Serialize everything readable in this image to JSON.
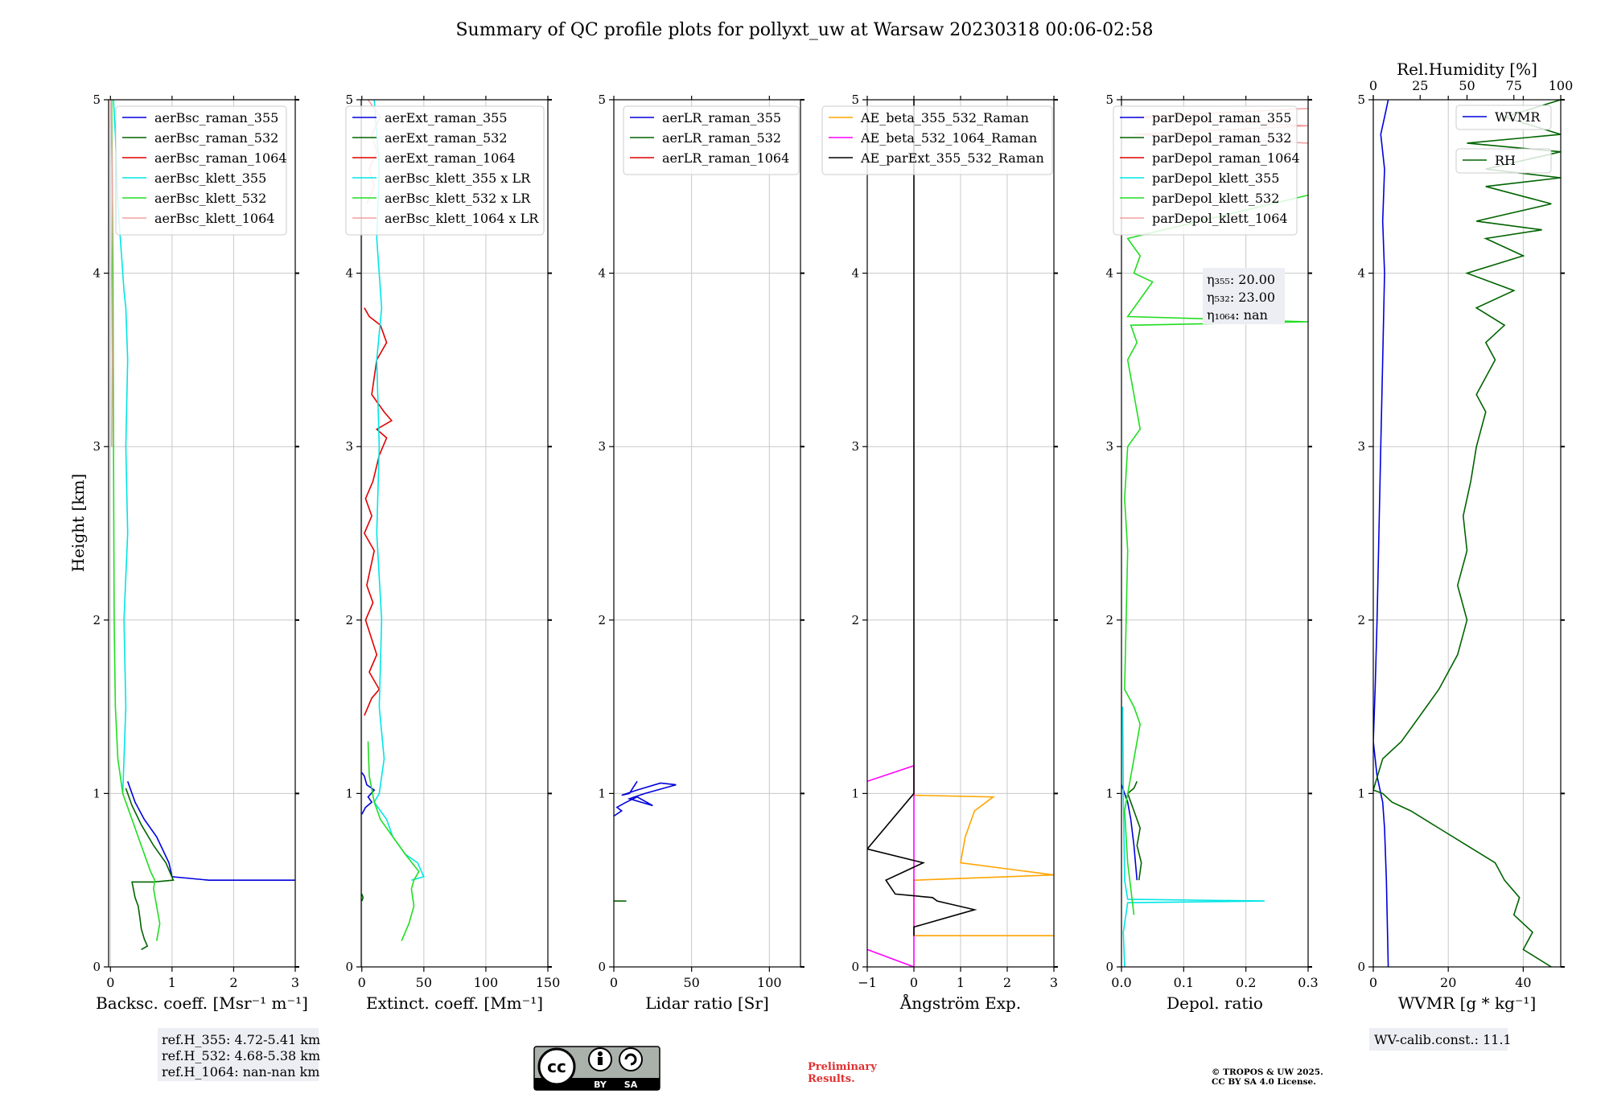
{
  "title": "Summary of QC profile plots for pollyxt_uw at Warsaw 20230318 00:06-02:58",
  "y_label": "Height [km]",
  "y_ticks": [
    "0",
    "1",
    "2",
    "3",
    "4",
    "5"
  ],
  "colors": {
    "blue": "#0000dd",
    "green": "#006400",
    "red": "#e00000",
    "cyan": "#00e5e5",
    "lime": "#22dd22",
    "pink": "#f4a0a0",
    "orange": "#ffa500",
    "magenta": "#ff00ff",
    "black": "#000000",
    "grid": "#c8c8c8",
    "box": "#eceef3"
  },
  "chart_data": [
    {
      "type": "line",
      "xlabel": "Backsc. coeff. [Msr⁻¹ m⁻¹]",
      "xlim": [
        -0.03,
        3
      ],
      "ylim": [
        0,
        5
      ],
      "xticks": [
        0,
        1,
        2,
        3
      ],
      "xtick_labels": [
        "0",
        "1",
        "2",
        "3"
      ],
      "legend": "top-right",
      "series": [
        {
          "name": "aerBsc_raman_355",
          "color": "blue",
          "x": [
            0.28,
            0.4,
            0.55,
            0.75,
            0.95,
            1.0,
            1.6,
            3.0
          ],
          "y": [
            1.07,
            0.95,
            0.85,
            0.75,
            0.6,
            0.52,
            0.5,
            0.5
          ]
        },
        {
          "name": "aerBsc_raman_532",
          "color": "green",
          "x": [
            0.25,
            0.35,
            0.5,
            0.7,
            0.9,
            1.02,
            0.7,
            0.35,
            0.4,
            0.45,
            0.48,
            0.5,
            0.55,
            0.6,
            0.5
          ],
          "y": [
            1.03,
            0.93,
            0.82,
            0.7,
            0.6,
            0.5,
            0.49,
            0.49,
            0.4,
            0.35,
            0.28,
            0.22,
            0.16,
            0.12,
            0.1
          ]
        },
        {
          "name": "aerBsc_raman_1064",
          "color": "red",
          "x": [],
          "y": []
        },
        {
          "name": "aerBsc_klett_355",
          "color": "cyan",
          "x": [
            0.2,
            0.25,
            0.22,
            0.28,
            0.25,
            0.28,
            0.25,
            0.22,
            0.2,
            0.18,
            0.15,
            0.12,
            0.1,
            0.08,
            0.05
          ],
          "y": [
            1.0,
            1.5,
            2.0,
            2.5,
            3.0,
            3.5,
            3.8,
            3.9,
            4.0,
            4.1,
            4.25,
            4.4,
            4.6,
            4.8,
            5.0
          ]
        },
        {
          "name": "aerBsc_klett_532",
          "color": "lime",
          "x": [
            0.75,
            0.8,
            0.75,
            0.7,
            0.72,
            0.65,
            0.5,
            0.35,
            0.2,
            0.12,
            0.08,
            0.06,
            0.05,
            0.04,
            0.03,
            0.02
          ],
          "y": [
            0.15,
            0.25,
            0.35,
            0.45,
            0.5,
            0.55,
            0.7,
            0.85,
            1.0,
            1.2,
            1.5,
            2.0,
            3.0,
            4.0,
            4.5,
            5.0
          ]
        },
        {
          "name": "aerBsc_klett_1064",
          "color": "pink",
          "x": [
            0.02,
            0.03,
            0.02,
            0.03,
            0.01
          ],
          "y": [
            3.0,
            3.5,
            4.0,
            4.5,
            5.0
          ]
        }
      ],
      "note_lines": [
        "ref.H_355: 4.72-5.41 km",
        "ref.H_532: 4.68-5.38 km",
        "ref.H_1064: nan-nan km"
      ]
    },
    {
      "type": "line",
      "xlabel": "Extinct. coeff. [Mm⁻¹]",
      "xlim": [
        -0.5,
        150
      ],
      "ylim": [
        0,
        5
      ],
      "xticks": [
        0,
        50,
        100,
        150
      ],
      "xtick_labels": [
        "0",
        "50",
        "100",
        "150"
      ],
      "legend": "top-right",
      "series": [
        {
          "name": "aerExt_raman_355",
          "color": "blue",
          "x": [
            0,
            3,
            8,
            5,
            10,
            4,
            2,
            0
          ],
          "y": [
            0.88,
            0.92,
            0.95,
            0.98,
            1.02,
            1.05,
            1.1,
            1.12
          ]
        },
        {
          "name": "aerExt_raman_532",
          "color": "green",
          "x": [
            0,
            1,
            0
          ],
          "y": [
            0.38,
            0.4,
            0.42
          ]
        },
        {
          "name": "aerExt_raman_1064",
          "color": "red",
          "x": [
            2,
            8,
            14,
            6,
            12,
            3,
            9,
            4,
            10,
            2,
            8,
            3,
            9,
            14,
            20,
            12,
            24,
            18,
            8,
            12,
            20,
            15,
            6,
            2
          ],
          "y": [
            1.45,
            1.55,
            1.6,
            1.7,
            1.8,
            2.0,
            2.1,
            2.2,
            2.4,
            2.5,
            2.6,
            2.7,
            2.8,
            2.95,
            3.05,
            3.1,
            3.15,
            3.2,
            3.3,
            3.5,
            3.6,
            3.7,
            3.75,
            3.8
          ]
        },
        {
          "name": "aerBsc_klett_355 x LR",
          "color": "cyan",
          "x": [
            10,
            14,
            12,
            16,
            12,
            14,
            12,
            16,
            14,
            18,
            14,
            10,
            20,
            25,
            35,
            45,
            50,
            40
          ],
          "y": [
            5.0,
            4.6,
            4.2,
            3.8,
            3.5,
            3.0,
            2.5,
            2.0,
            1.5,
            1.2,
            1.0,
            0.95,
            0.85,
            0.75,
            0.65,
            0.6,
            0.52,
            0.5
          ]
        },
        {
          "name": "aerBsc_klett_532 x LR",
          "color": "lime",
          "x": [
            32,
            38,
            42,
            40,
            42,
            46,
            35,
            25,
            15,
            10,
            6,
            5
          ],
          "y": [
            0.15,
            0.25,
            0.35,
            0.45,
            0.5,
            0.55,
            0.65,
            0.75,
            0.85,
            0.95,
            1.1,
            1.3
          ]
        },
        {
          "name": "aerBsc_klett_1064 x LR",
          "color": "pink",
          "x": [
            5,
            15,
            8,
            12,
            6,
            10,
            4
          ],
          "y": [
            5.0,
            4.9,
            4.8,
            4.7,
            4.6,
            4.5,
            4.4
          ]
        }
      ]
    },
    {
      "type": "line",
      "xlabel": "Lidar ratio [Sr]",
      "xlim": [
        0,
        120
      ],
      "ylim": [
        0,
        5
      ],
      "xticks": [
        0,
        50,
        100
      ],
      "xtick_labels": [
        "0",
        "50",
        "100"
      ],
      "legend": "top-right",
      "series": [
        {
          "name": "aerLR_raman_355",
          "color": "blue",
          "x": [
            0,
            5,
            2,
            8,
            15,
            25,
            10,
            20,
            40,
            30,
            15,
            5,
            10,
            15
          ],
          "y": [
            0.87,
            0.9,
            0.92,
            0.95,
            0.98,
            0.93,
            0.97,
            1.0,
            1.05,
            1.06,
            1.02,
            0.99,
            1.0,
            1.07
          ]
        },
        {
          "name": "aerLR_raman_532",
          "color": "green",
          "x": [
            0,
            8
          ],
          "y": [
            0.38,
            0.38
          ]
        },
        {
          "name": "aerLR_raman_1064",
          "color": "red",
          "x": [],
          "y": []
        }
      ]
    },
    {
      "type": "line",
      "xlabel": "Ångström Exp.",
      "xlim": [
        -1,
        3
      ],
      "ylim": [
        0,
        5
      ],
      "xticks": [
        -1,
        0,
        1,
        2,
        3
      ],
      "xtick_labels": [
        "−1",
        "0",
        "1",
        "2",
        "3"
      ],
      "legend": "top-right",
      "series": [
        {
          "name": "AE_beta_355_532_Raman",
          "color": "orange",
          "x": [
            3,
            0,
            0,
            3,
            1,
            1.1,
            1.3,
            1.7,
            0,
            0
          ],
          "y": [
            0.18,
            0.18,
            0.5,
            0.53,
            0.6,
            0.75,
            0.9,
            0.98,
            0.99,
            1.0
          ]
        },
        {
          "name": "AE_beta_532_1064_Raman",
          "color": "magenta",
          "x": [
            -1,
            0,
            0,
            -1
          ],
          "y": [
            0.1,
            0.0,
            1.16,
            1.07
          ]
        },
        {
          "name": "AE_parExt_355_532_Raman",
          "color": "black",
          "x": [
            0,
            0,
            1.3,
            0.5,
            0.4,
            -0.4,
            -0.6,
            -0.2,
            0.2,
            -1,
            0,
            0
          ],
          "y": [
            0.18,
            0.23,
            0.33,
            0.38,
            0.4,
            0.42,
            0.5,
            0.55,
            0.6,
            0.68,
            1.0,
            5.0
          ]
        }
      ]
    },
    {
      "type": "line",
      "xlabel": "Depol. ratio",
      "xlim": [
        0,
        0.3
      ],
      "ylim": [
        0,
        5
      ],
      "xticks": [
        0,
        0.1,
        0.2,
        0.3
      ],
      "xtick_labels": [
        "0.0",
        "0.1",
        "0.2",
        "0.3"
      ],
      "legend": "top-right",
      "series": [
        {
          "name": "parDepol_raman_355",
          "color": "blue",
          "x": [
            0.025,
            0.02,
            0.015,
            0.01,
            0.005,
            0.0
          ],
          "y": [
            0.5,
            0.7,
            0.85,
            0.95,
            1.0,
            1.05
          ]
        },
        {
          "name": "parDepol_raman_532",
          "color": "green",
          "x": [
            0.028,
            0.032,
            0.025,
            0.03,
            0.02,
            0.015,
            0.01,
            0.02,
            0.025
          ],
          "y": [
            0.5,
            0.6,
            0.7,
            0.8,
            0.9,
            0.95,
            1.0,
            1.03,
            1.07
          ]
        },
        {
          "name": "parDepol_raman_1064",
          "color": "red",
          "x": [],
          "y": []
        },
        {
          "name": "parDepol_klett_355",
          "color": "cyan",
          "x": [
            0.005,
            0.003,
            0.01,
            0.23,
            0.01,
            0.005,
            0.003,
            0.002
          ],
          "y": [
            0.0,
            0.2,
            0.37,
            0.38,
            0.39,
            0.5,
            1.0,
            1.5
          ]
        },
        {
          "name": "parDepol_klett_532",
          "color": "lime",
          "x": [
            0.02,
            0.01,
            0.005,
            0.02,
            0.03,
            0.02,
            0.005,
            0.01,
            0.005,
            0.01,
            0.03,
            0.02,
            0.01,
            0.025,
            0.015,
            0.3,
            0.01,
            0.05,
            0.02,
            0.03,
            0.01,
            0.3
          ],
          "y": [
            0.3,
            0.6,
            0.9,
            1.2,
            1.4,
            1.5,
            1.6,
            2.4,
            2.7,
            3.0,
            3.1,
            3.3,
            3.5,
            3.6,
            3.7,
            3.72,
            3.75,
            3.95,
            4.0,
            4.1,
            4.2,
            4.45
          ]
        },
        {
          "name": "parDepol_klett_1064",
          "color": "pink",
          "x": [
            0.3,
            0.02,
            0.3,
            0.02,
            0.3
          ],
          "y": [
            4.95,
            4.9,
            4.85,
            4.8,
            4.75
          ]
        }
      ],
      "note_lines": [
        "η₃₅₅: 20.00",
        "η₅₃₂: 23.00",
        "η₁₀₆₄: nan"
      ]
    },
    {
      "type": "line",
      "xlabel": "WVMR [g * kg⁻¹]",
      "xlim": [
        0,
        50
      ],
      "ylim": [
        0,
        5
      ],
      "xticks": [
        0,
        20,
        40
      ],
      "xtick_labels": [
        "0",
        "20",
        "40"
      ],
      "top_axis": {
        "label": "Rel.Humidity [%]",
        "xlim": [
          0,
          100
        ],
        "xticks": [
          0,
          25,
          50,
          75,
          100
        ],
        "xtick_labels": [
          "0",
          "25",
          "50",
          "75",
          "100"
        ]
      },
      "legend": "top-right",
      "series": [
        {
          "name": "WVMR",
          "color": "blue",
          "axis": "bottom",
          "x": [
            4,
            3.5,
            3,
            2.5,
            2,
            1,
            0,
            0.5,
            1,
            1.5,
            2,
            2.5,
            3,
            2.5,
            3,
            2,
            3,
            4
          ],
          "y": [
            0.0,
            0.5,
            0.8,
            0.95,
            1.0,
            1.1,
            1.3,
            1.6,
            2.0,
            2.5,
            3.0,
            3.5,
            4.0,
            4.3,
            4.6,
            4.8,
            4.9,
            5.0
          ]
        },
        {
          "name": "RH",
          "color": "green",
          "axis": "top",
          "x": [
            95,
            80,
            85,
            75,
            78,
            70,
            65,
            50,
            35,
            20,
            10,
            5,
            0,
            5,
            15,
            25,
            35,
            45,
            50,
            45,
            50,
            48,
            52,
            55,
            60,
            55,
            65,
            60,
            70,
            55,
            75,
            50,
            80,
            60,
            90,
            55,
            95,
            60,
            100,
            60,
            100,
            50,
            100,
            70,
            100
          ],
          "y": [
            0.0,
            0.1,
            0.2,
            0.3,
            0.4,
            0.5,
            0.6,
            0.7,
            0.8,
            0.9,
            0.95,
            1.0,
            1.02,
            1.2,
            1.3,
            1.45,
            1.6,
            1.8,
            2.0,
            2.2,
            2.4,
            2.6,
            2.8,
            3.0,
            3.2,
            3.3,
            3.5,
            3.6,
            3.7,
            3.8,
            3.9,
            4.0,
            4.1,
            4.2,
            4.25,
            4.3,
            4.4,
            4.5,
            4.55,
            4.6,
            4.7,
            4.75,
            4.8,
            4.9,
            5.0
          ]
        }
      ],
      "note_lines": [
        "WV-calib.const.: 11.1"
      ]
    }
  ],
  "license": {
    "by": "BY",
    "sa": "SA",
    "cc": "cc"
  },
  "preliminary": [
    "Preliminary",
    "Results."
  ],
  "copyright": [
    "© TROPOS & UW 2025.",
    "CC BY SA 4.0 License."
  ]
}
